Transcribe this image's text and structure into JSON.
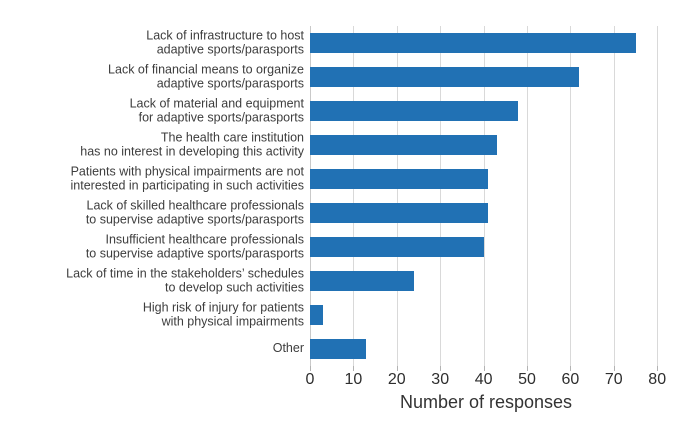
{
  "chart_data": {
    "type": "bar",
    "orientation": "horizontal",
    "title": "",
    "xlabel": "Number of responses",
    "categories": [
      "Lack of infrastructure to host\nadaptive sports/parasports",
      "Lack of financial means to organize\nadaptive sports/parasports",
      "Lack of material and equipment\nfor adaptive sports/parasports",
      "The health care institution\nhas no interest in developing this activity",
      "Patients with physical impairments are not\ninterested in participating in such activities",
      "Lack of skilled healthcare professionals\nto supervise adaptive sports/parasports",
      "Insufficient healthcare professionals\nto supervise adaptive sports/parasports",
      "Lack of time in the stakeholders’ schedules\nto develop such activities",
      "High risk of injury for patients\nwith physical impairments",
      "Other"
    ],
    "values": [
      75,
      62,
      48,
      43,
      41,
      41,
      40,
      24,
      3,
      13
    ],
    "xticks": [
      0,
      10,
      20,
      30,
      40,
      50,
      60,
      70,
      80
    ],
    "xlim": [
      0,
      81.5
    ],
    "grid": "vertical-gridlines-on",
    "legend": "none",
    "colors": {
      "bar": "#2171b4",
      "gridline": "#d9d9d9",
      "category_label": "#3d3d3d",
      "tick_label": "#2e2e2e",
      "axis_label": "#333333"
    }
  }
}
